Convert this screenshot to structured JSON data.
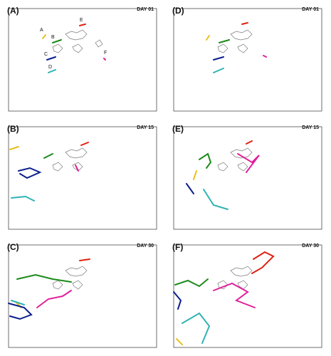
{
  "panels": [
    {
      "label": "(A)",
      "day": "DAY 01",
      "annotations": [
        "A",
        "B",
        "C",
        "D",
        "E",
        "F"
      ]
    },
    {
      "label": "(D)",
      "day": "DAY 01"
    },
    {
      "label": "(B)",
      "day": "DAY 15"
    },
    {
      "label": "(E)",
      "day": "DAY 15"
    },
    {
      "label": "(C)",
      "day": "DAY 30"
    },
    {
      "label": "(F)",
      "day": "DAY 30"
    }
  ],
  "colors": {
    "A": "#e8c020",
    "B": "#1a8a1a",
    "C": "#0a1e8c",
    "D": "#2fb3b3",
    "E": "#e02010",
    "F": "#e0209a",
    "land": "#7a7a7a",
    "frame": "#333333"
  }
}
